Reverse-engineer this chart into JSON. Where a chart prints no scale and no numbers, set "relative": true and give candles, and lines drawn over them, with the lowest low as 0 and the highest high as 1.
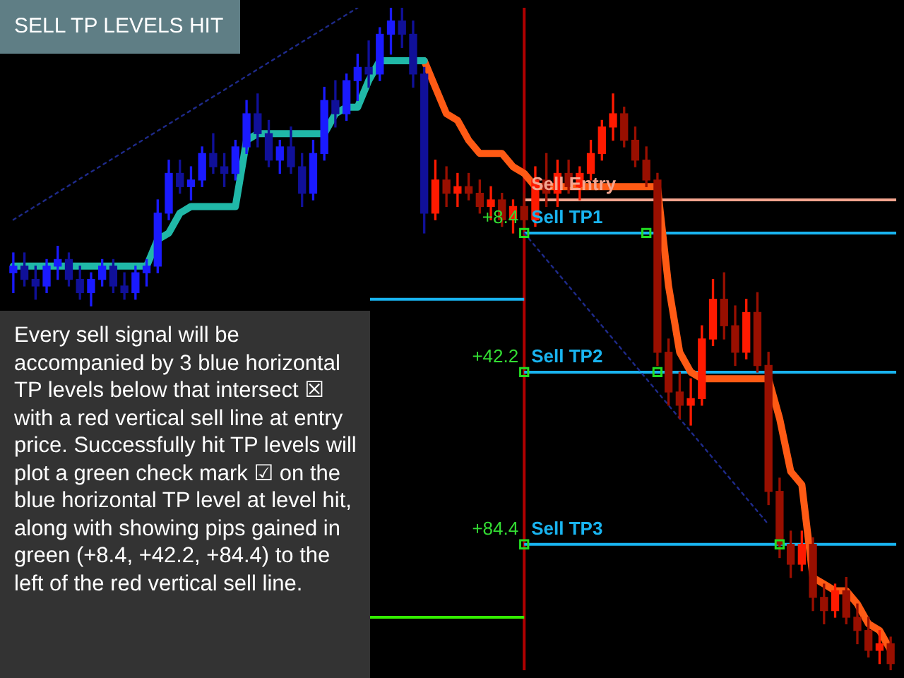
{
  "chart_data": {
    "type": "candlestick",
    "title": "SELL TP LEVELS HIT",
    "relative": true,
    "tick_labels": false,
    "legend": false,
    "categories": [
      null,
      null,
      null,
      null,
      null,
      null,
      null,
      null,
      null,
      null,
      null,
      null,
      null,
      null,
      null,
      null,
      null,
      null,
      null,
      null,
      null,
      null,
      null,
      null,
      null,
      null,
      null,
      null,
      null,
      null,
      null,
      null,
      null,
      null,
      null,
      null,
      null,
      null,
      null,
      null,
      null,
      null,
      null,
      null,
      null,
      null,
      null,
      null,
      null,
      null,
      null,
      null,
      null,
      null,
      null,
      null,
      null,
      null,
      null,
      null,
      null,
      null,
      null,
      null,
      null,
      null,
      null,
      null,
      null,
      null,
      null,
      null,
      null,
      null,
      null,
      null,
      null,
      null,
      null,
      null
    ],
    "ohlc": [
      [
        0.6,
        0.63,
        0.57,
        0.61
      ],
      [
        0.61,
        0.63,
        0.58,
        0.59
      ],
      [
        0.59,
        0.61,
        0.56,
        0.58
      ],
      [
        0.58,
        0.62,
        0.57,
        0.61
      ],
      [
        0.61,
        0.64,
        0.59,
        0.62
      ],
      [
        0.62,
        0.63,
        0.58,
        0.59
      ],
      [
        0.59,
        0.61,
        0.56,
        0.57
      ],
      [
        0.57,
        0.6,
        0.55,
        0.59
      ],
      [
        0.59,
        0.62,
        0.58,
        0.61
      ],
      [
        0.61,
        0.62,
        0.57,
        0.58
      ],
      [
        0.58,
        0.6,
        0.56,
        0.57
      ],
      [
        0.57,
        0.61,
        0.56,
        0.6
      ],
      [
        0.6,
        0.62,
        0.58,
        0.61
      ],
      [
        0.61,
        0.71,
        0.6,
        0.69
      ],
      [
        0.69,
        0.77,
        0.68,
        0.75
      ],
      [
        0.75,
        0.77,
        0.72,
        0.73
      ],
      [
        0.73,
        0.76,
        0.71,
        0.74
      ],
      [
        0.74,
        0.79,
        0.73,
        0.78
      ],
      [
        0.78,
        0.81,
        0.75,
        0.76
      ],
      [
        0.76,
        0.78,
        0.73,
        0.75
      ],
      [
        0.75,
        0.8,
        0.74,
        0.79
      ],
      [
        0.79,
        0.86,
        0.78,
        0.84
      ],
      [
        0.84,
        0.87,
        0.79,
        0.81
      ],
      [
        0.81,
        0.83,
        0.76,
        0.77
      ],
      [
        0.77,
        0.8,
        0.75,
        0.79
      ],
      [
        0.79,
        0.82,
        0.75,
        0.76
      ],
      [
        0.76,
        0.78,
        0.7,
        0.72
      ],
      [
        0.72,
        0.8,
        0.71,
        0.78
      ],
      [
        0.78,
        0.88,
        0.77,
        0.86
      ],
      [
        0.86,
        0.89,
        0.82,
        0.84
      ],
      [
        0.84,
        0.9,
        0.83,
        0.89
      ],
      [
        0.89,
        0.93,
        0.86,
        0.91
      ],
      [
        0.91,
        0.95,
        0.88,
        0.9
      ],
      [
        0.9,
        0.97,
        0.89,
        0.96
      ],
      [
        0.96,
        1.0,
        0.93,
        0.98
      ],
      [
        0.98,
        1.0,
        0.94,
        0.96
      ],
      [
        0.96,
        0.98,
        0.88,
        0.9
      ],
      [
        0.9,
        0.91,
        0.66,
        0.69
      ],
      [
        0.69,
        0.77,
        0.68,
        0.74
      ],
      [
        0.74,
        0.76,
        0.7,
        0.72
      ],
      [
        0.72,
        0.75,
        0.7,
        0.73
      ],
      [
        0.73,
        0.75,
        0.71,
        0.72
      ],
      [
        0.72,
        0.74,
        0.69,
        0.7
      ],
      [
        0.7,
        0.73,
        0.68,
        0.71
      ],
      [
        0.71,
        0.72,
        0.67,
        0.68
      ],
      [
        0.68,
        0.71,
        0.66,
        0.7
      ],
      [
        0.7,
        0.72,
        0.67,
        0.68
      ],
      [
        0.68,
        0.76,
        0.67,
        0.74
      ],
      [
        0.74,
        0.78,
        0.7,
        0.72
      ],
      [
        0.72,
        0.77,
        0.7,
        0.75
      ],
      [
        0.75,
        0.77,
        0.72,
        0.73
      ],
      [
        0.73,
        0.76,
        0.71,
        0.75
      ],
      [
        0.75,
        0.8,
        0.74,
        0.78
      ],
      [
        0.78,
        0.83,
        0.77,
        0.82
      ],
      [
        0.82,
        0.87,
        0.8,
        0.84
      ],
      [
        0.84,
        0.85,
        0.79,
        0.8
      ],
      [
        0.8,
        0.82,
        0.76,
        0.77
      ],
      [
        0.77,
        0.79,
        0.73,
        0.74
      ],
      [
        0.74,
        0.75,
        0.46,
        0.48
      ],
      [
        0.48,
        0.5,
        0.4,
        0.42
      ],
      [
        0.42,
        0.45,
        0.38,
        0.4
      ],
      [
        0.4,
        0.44,
        0.37,
        0.41
      ],
      [
        0.41,
        0.52,
        0.4,
        0.5
      ],
      [
        0.5,
        0.59,
        0.49,
        0.56
      ],
      [
        0.56,
        0.6,
        0.5,
        0.52
      ],
      [
        0.52,
        0.55,
        0.46,
        0.48
      ],
      [
        0.48,
        0.56,
        0.47,
        0.54
      ],
      [
        0.54,
        0.57,
        0.45,
        0.46
      ],
      [
        0.46,
        0.48,
        0.25,
        0.27
      ],
      [
        0.27,
        0.29,
        0.17,
        0.19
      ],
      [
        0.19,
        0.21,
        0.14,
        0.16
      ],
      [
        0.16,
        0.21,
        0.15,
        0.19
      ],
      [
        0.19,
        0.2,
        0.09,
        0.11
      ],
      [
        0.11,
        0.13,
        0.07,
        0.09
      ],
      [
        0.09,
        0.13,
        0.08,
        0.12
      ],
      [
        0.12,
        0.14,
        0.07,
        0.08
      ],
      [
        0.08,
        0.1,
        0.04,
        0.06
      ],
      [
        0.06,
        0.08,
        0.02,
        0.03
      ],
      [
        0.03,
        0.06,
        0.01,
        0.04
      ],
      [
        0.04,
        0.05,
        0.0,
        0.01
      ]
    ],
    "colors": [
      "#1a1aff",
      "#101099",
      "#101099",
      "#1a1aff",
      "#1a1aff",
      "#101099",
      "#101099",
      "#1a1aff",
      "#1a1aff",
      "#101099",
      "#101099",
      "#1a1aff",
      "#1a1aff",
      "#1a1aff",
      "#1a1aff",
      "#101099",
      "#1a1aff",
      "#1a1aff",
      "#101099",
      "#101099",
      "#1a1aff",
      "#1a1aff",
      "#101099",
      "#101099",
      "#1a1aff",
      "#101099",
      "#101099",
      "#1a1aff",
      "#1a1aff",
      "#101099",
      "#1a1aff",
      "#1a1aff",
      "#101099",
      "#1a1aff",
      "#1a1aff",
      "#101099",
      "#101099",
      "#101099",
      "#ff1a00",
      "#990f00",
      "#ff1a00",
      "#990f00",
      "#990f00",
      "#ff1a00",
      "#990f00",
      "#ff1a00",
      "#990f00",
      "#ff1a00",
      "#990f00",
      "#ff1a00",
      "#990f00",
      "#ff1a00",
      "#ff1a00",
      "#ff1a00",
      "#ff1a00",
      "#990f00",
      "#990f00",
      "#990f00",
      "#990f00",
      "#990f00",
      "#990f00",
      "#ff1a00",
      "#ff1a00",
      "#ff1a00",
      "#990f00",
      "#990f00",
      "#ff1a00",
      "#990f00",
      "#990f00",
      "#990f00",
      "#990f00",
      "#ff1a00",
      "#990f00",
      "#990f00",
      "#ff1a00",
      "#990f00",
      "#990f00",
      "#990f00",
      "#ff1a00",
      "#990f00"
    ],
    "series": [
      {
        "type": "line",
        "color": "#20b8a8",
        "values": [
          0.61,
          0.61,
          0.61,
          0.61,
          0.61,
          0.61,
          0.61,
          0.61,
          0.61,
          0.61,
          0.61,
          0.61,
          0.61,
          0.65,
          0.66,
          0.69,
          0.7,
          0.7,
          0.7,
          0.7,
          0.7,
          0.8,
          0.81,
          0.81,
          0.81,
          0.81,
          0.81,
          0.81,
          0.81,
          0.84,
          0.85,
          0.85,
          0.89,
          0.92,
          0.92,
          0.92,
          0.92,
          0.92,
          null,
          null,
          null,
          null,
          null,
          null,
          null,
          null,
          null,
          null,
          null,
          null,
          null,
          null,
          null,
          null,
          null,
          null,
          null,
          null,
          null,
          null,
          null,
          null,
          null,
          null,
          null,
          null,
          null,
          null,
          null,
          null,
          null,
          null,
          null,
          null,
          null,
          null,
          null,
          null,
          null,
          null
        ]
      },
      {
        "type": "line",
        "color": "#ff5a14",
        "values": [
          null,
          null,
          null,
          null,
          null,
          null,
          null,
          null,
          null,
          null,
          null,
          null,
          null,
          null,
          null,
          null,
          null,
          null,
          null,
          null,
          null,
          null,
          null,
          null,
          null,
          null,
          null,
          null,
          null,
          null,
          null,
          null,
          null,
          null,
          null,
          null,
          null,
          0.92,
          0.88,
          0.84,
          0.83,
          0.8,
          0.78,
          0.78,
          0.78,
          0.76,
          0.75,
          0.73,
          0.73,
          0.73,
          0.73,
          0.73,
          0.73,
          0.73,
          0.73,
          0.73,
          0.73,
          0.73,
          0.73,
          0.58,
          0.48,
          0.45,
          0.44,
          0.44,
          0.44,
          0.44,
          0.44,
          0.44,
          0.44,
          0.38,
          0.3,
          0.28,
          0.14,
          0.13,
          0.12,
          0.12,
          0.1,
          0.07,
          0.06,
          0.03
        ]
      },
      {
        "type": "line",
        "color": "#1e2a8a",
        "line_style": "dotted",
        "values": [
          0.68,
          null,
          null,
          null,
          null,
          null,
          null,
          null,
          null,
          null,
          null,
          null,
          null,
          null,
          null,
          null,
          null,
          null,
          null,
          null,
          null,
          null,
          null,
          null,
          null,
          null,
          null,
          null,
          null,
          null,
          null,
          1.0,
          null,
          null,
          null,
          null,
          null,
          null,
          null,
          null,
          null,
          null,
          null,
          null,
          null,
          null,
          null,
          null,
          null,
          null,
          null,
          null,
          null,
          null,
          null,
          null,
          null,
          null,
          null,
          null,
          null,
          null,
          null,
          null,
          null,
          null,
          null,
          null,
          null,
          null,
          null,
          null,
          null,
          null,
          null,
          null,
          null,
          null,
          null,
          null
        ]
      },
      {
        "type": "line",
        "color": "#1e2a8a",
        "line_style": "dotted",
        "values": [
          null,
          null,
          null,
          null,
          null,
          null,
          null,
          null,
          null,
          null,
          null,
          null,
          null,
          null,
          null,
          null,
          null,
          null,
          null,
          null,
          null,
          null,
          null,
          null,
          null,
          null,
          null,
          null,
          null,
          null,
          null,
          null,
          null,
          null,
          null,
          null,
          null,
          null,
          null,
          null,
          null,
          null,
          null,
          null,
          null,
          null,
          0.66,
          null,
          null,
          null,
          null,
          null,
          null,
          null,
          null,
          null,
          null,
          null,
          null,
          null,
          null,
          null,
          null,
          null,
          null,
          null,
          null,
          null,
          0.22,
          null,
          null,
          null,
          null,
          null,
          null,
          null,
          null,
          null,
          null,
          null
        ]
      },
      {
        "type": "scatter",
        "marker": "square",
        "color": "#22dd22",
        "values": [
          null,
          null,
          null,
          null,
          null,
          null,
          null,
          null,
          null,
          null,
          null,
          null,
          null,
          null,
          null,
          null,
          null,
          null,
          null,
          null,
          null,
          null,
          null,
          null,
          null,
          null,
          null,
          null,
          null,
          null,
          null,
          null,
          null,
          null,
          null,
          null,
          null,
          null,
          null,
          null,
          null,
          null,
          null,
          null,
          null,
          null,
          0.66,
          null,
          null,
          null,
          null,
          null,
          null,
          null,
          null,
          null,
          null,
          0.66,
          null,
          null,
          null,
          null,
          null,
          null,
          null,
          null,
          null,
          null,
          null,
          null,
          null,
          null,
          null,
          null,
          null,
          null,
          null,
          null,
          null,
          null
        ]
      },
      {
        "type": "scatter",
        "marker": "square",
        "color": "#22dd22",
        "values": [
          null,
          null,
          null,
          null,
          null,
          null,
          null,
          null,
          null,
          null,
          null,
          null,
          null,
          null,
          null,
          null,
          null,
          null,
          null,
          null,
          null,
          null,
          null,
          null,
          null,
          null,
          null,
          null,
          null,
          null,
          null,
          null,
          null,
          null,
          null,
          null,
          null,
          null,
          null,
          null,
          null,
          null,
          null,
          null,
          null,
          null,
          0.45,
          null,
          null,
          null,
          null,
          null,
          null,
          null,
          null,
          null,
          null,
          null,
          0.45,
          null,
          null,
          null,
          null,
          null,
          null,
          null,
          null,
          null,
          null,
          null,
          null,
          null,
          null,
          null,
          null,
          null,
          null,
          null,
          null,
          null
        ]
      },
      {
        "type": "scatter",
        "marker": "square",
        "color": "#22dd22",
        "values": [
          null,
          null,
          null,
          null,
          null,
          null,
          null,
          null,
          null,
          null,
          null,
          null,
          null,
          null,
          null,
          null,
          null,
          null,
          null,
          null,
          null,
          null,
          null,
          null,
          null,
          null,
          null,
          null,
          null,
          null,
          null,
          null,
          null,
          null,
          null,
          null,
          null,
          null,
          null,
          null,
          null,
          null,
          null,
          null,
          null,
          null,
          0.19,
          null,
          null,
          null,
          null,
          null,
          null,
          null,
          null,
          null,
          null,
          null,
          null,
          null,
          null,
          null,
          null,
          null,
          null,
          null,
          null,
          null,
          null,
          0.19,
          null,
          null,
          null,
          null,
          null,
          null,
          null,
          null,
          null,
          null
        ]
      }
    ],
    "ref_lines": [
      {
        "axis": "y",
        "value": 0.71,
        "label": "Sell Entry",
        "color": "#f4a58f"
      },
      {
        "axis": "y",
        "value": 0.66,
        "label": "Sell TP1",
        "color": "#19b4f0"
      },
      {
        "axis": "y",
        "value": 0.45,
        "label": "Sell TP2",
        "color": "#19b4f0"
      },
      {
        "axis": "y",
        "value": 0.19,
        "label": "Sell TP3",
        "color": "#19b4f0"
      },
      {
        "axis": "y",
        "value": 0.56,
        "color": "#19b4f0"
      },
      {
        "axis": "y",
        "value": 0.08,
        "color": "#33ee00"
      }
    ],
    "annotations": [
      "+8.4",
      "+42.2",
      "+84.4",
      "Every sell signal will be accompanied by 3 blue horizontal TP levels below that intersect ☒ with a red vertical sell line at entry price. Successfully hit TP levels will plot a green check mark ☑ on the blue horizontal TP level at level hit, along with showing pips gained in green (+8.4, +42.2, +84.4) to the left of the red vertical sell line."
    ]
  }
}
